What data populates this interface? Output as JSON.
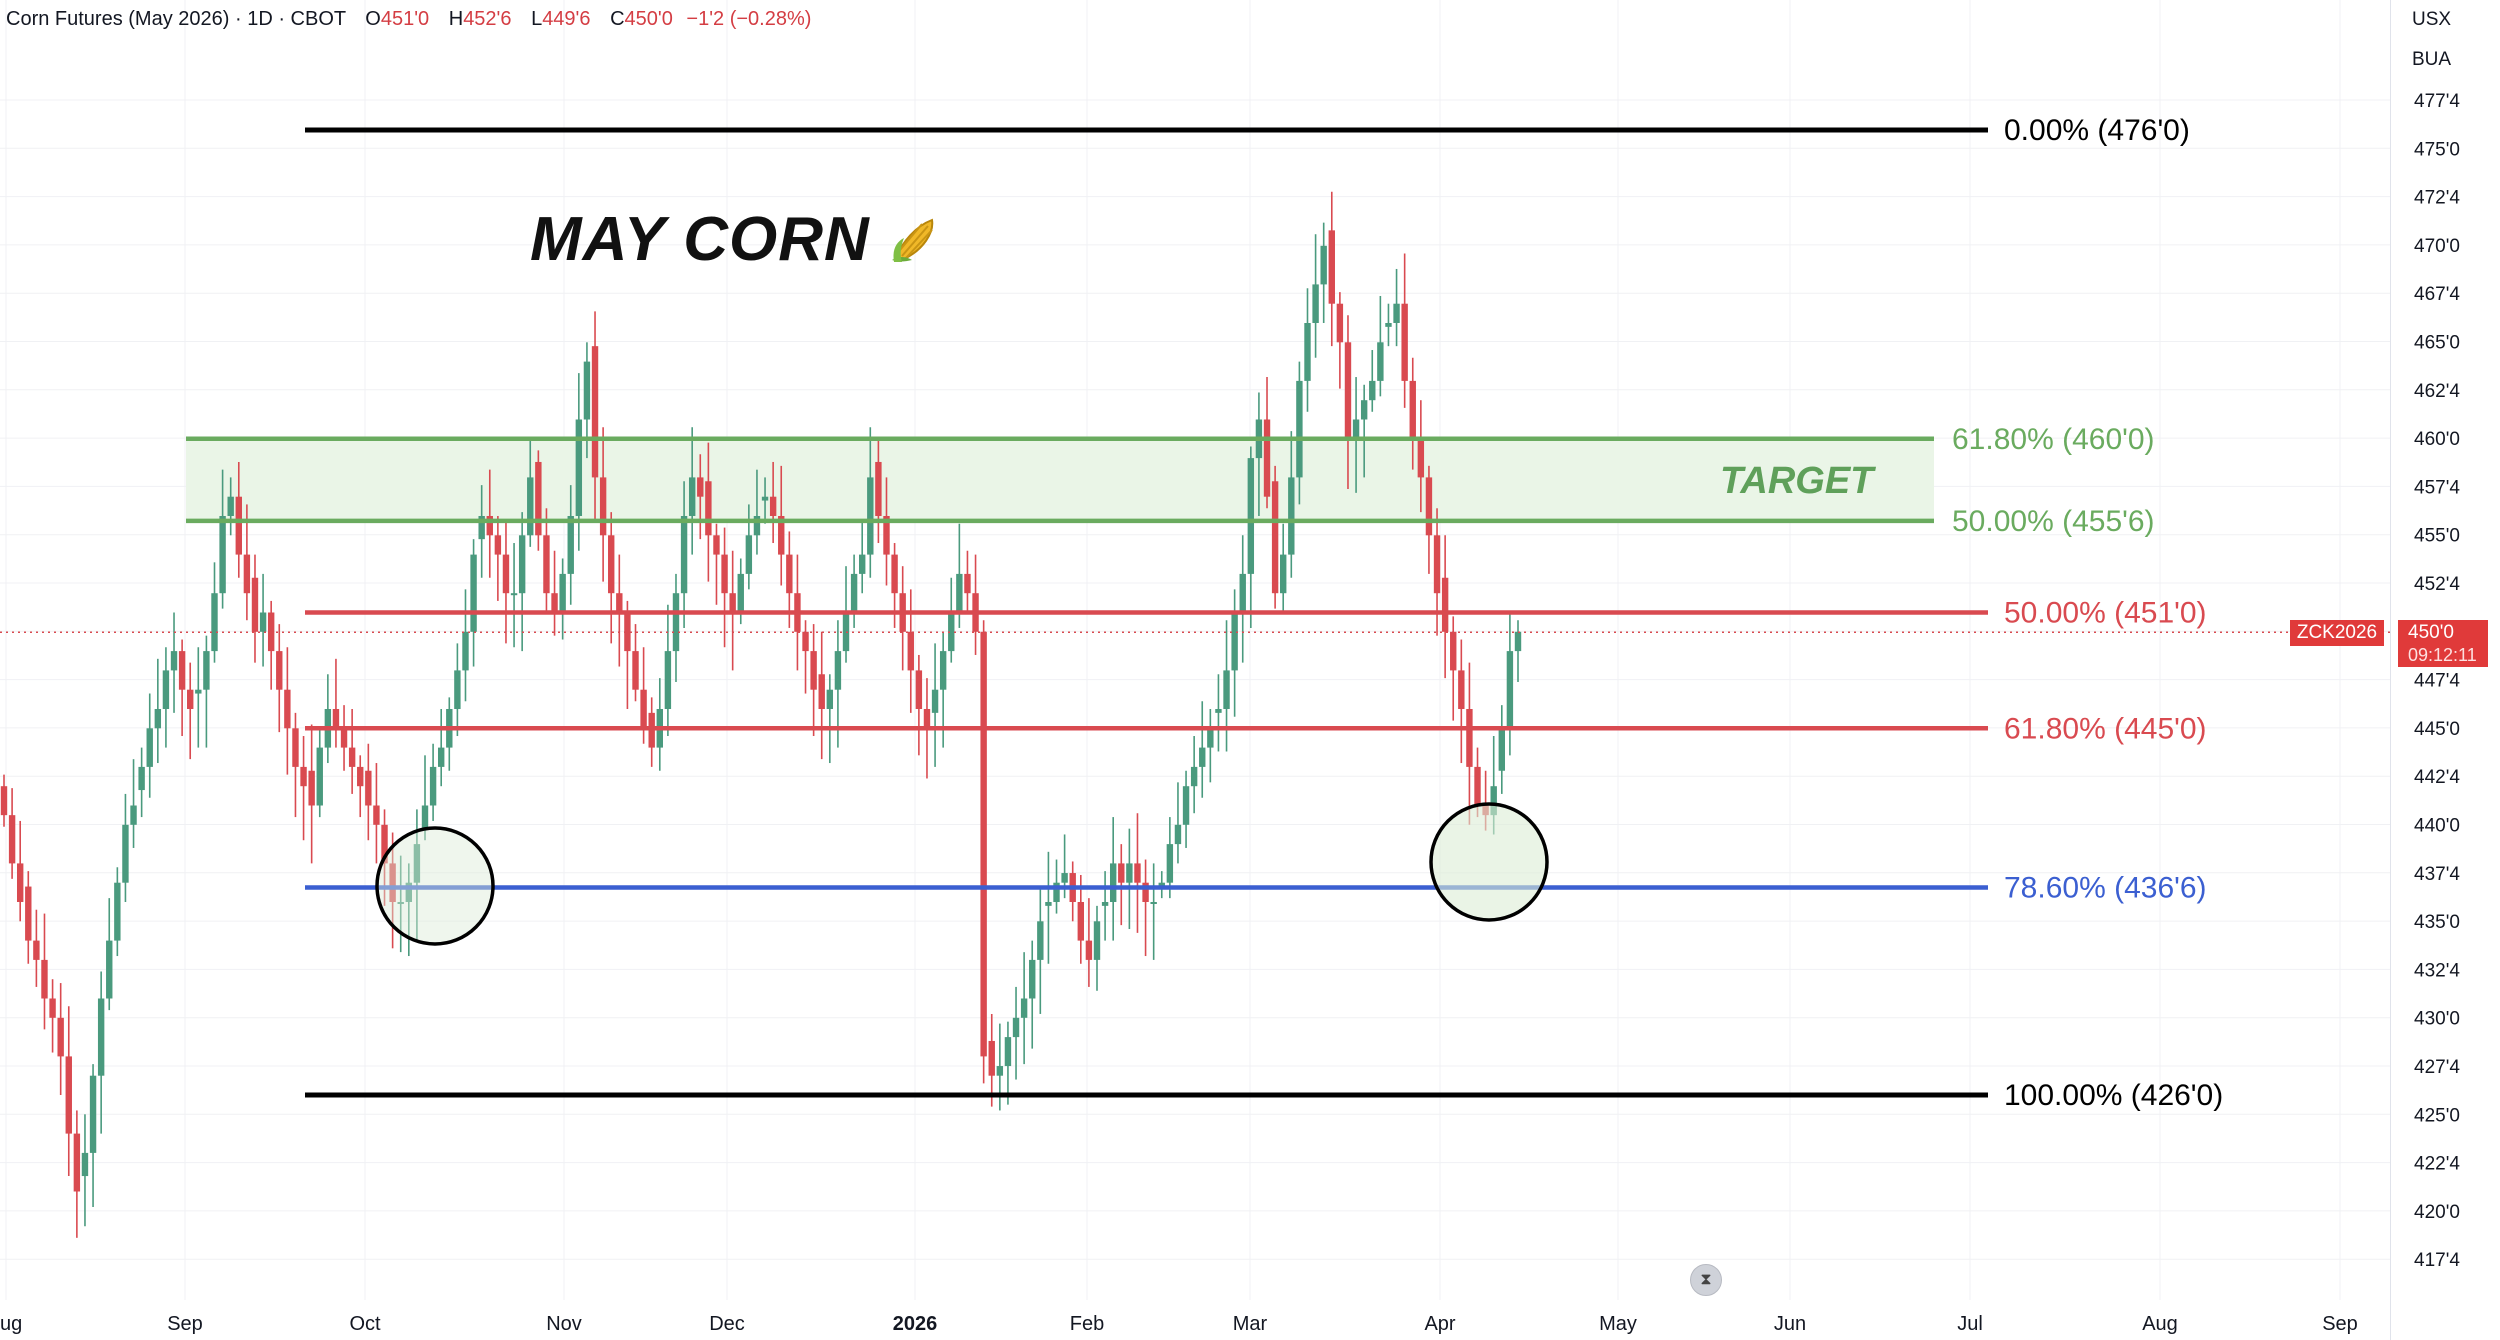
{
  "header": {
    "symbol": "Corn Futures (May 2026) · 1D · CBOT",
    "open_label": "O",
    "open_value": "451'0",
    "high_label": "H",
    "high_value": "452'6",
    "low_label": "L",
    "low_value": "449'6",
    "close_label": "C",
    "close_value": "450'0",
    "change": "−1'2 (−0.28%)"
  },
  "price_scale": {
    "units": [
      "USX",
      "BUA"
    ],
    "ticks": [
      "477'4",
      "475'0",
      "472'4",
      "470'0",
      "467'4",
      "465'0",
      "462'4",
      "460'0",
      "457'4",
      "455'0",
      "452'4",
      "450'0",
      "447'4",
      "445'0",
      "442'4",
      "440'0",
      "437'4",
      "435'0",
      "432'4",
      "430'0",
      "427'4",
      "425'0",
      "422'4",
      "420'0",
      "417'4"
    ],
    "current_price": "450'0",
    "current_timer": "09:12:11",
    "symbol_tag": "ZCK2026"
  },
  "time_axis": [
    "ug",
    "Sep",
    "Oct",
    "Nov",
    "Dec",
    "2026",
    "Feb",
    "Mar",
    "Apr",
    "May",
    "Jun",
    "Jul",
    "Aug",
    "Sep"
  ],
  "annotations": {
    "title": "MAY CORN",
    "target_label": "TARGET",
    "goto_icon": "hourglass-icon"
  },
  "colors": {
    "up": "#4a9a7e",
    "down": "#d94a50",
    "fib_black": "#000000",
    "fib_red": "#d94a50",
    "fib_green": "#6aab5f",
    "fib_blue": "#3b5fd1",
    "target_zone": "#eaf5e7"
  },
  "chart_data": {
    "type": "candlestick",
    "title": "Corn Futures (May 2026) · 1D · CBOT",
    "y_unit": "USX",
    "ylim": [
      416,
      478.5
    ],
    "x_range": [
      "2025-08",
      "2026-09"
    ],
    "fib_levels": [
      {
        "label": "0.00% (476'0)",
        "value": 476.0,
        "color": "black"
      },
      {
        "label": "100.00% (426'0)",
        "value": 426.0,
        "color": "black"
      },
      {
        "label": "50.00% (451'0)",
        "value": 451.0,
        "color": "red"
      },
      {
        "label": "61.80% (445'0)",
        "value": 445.0,
        "color": "red"
      },
      {
        "label": "78.60% (436'6)",
        "value": 436.75,
        "color": "blue"
      },
      {
        "label": "61.80% (460'0)",
        "value": 460.0,
        "color": "green"
      },
      {
        "label": "50.00% (455'6)",
        "value": 455.75,
        "color": "green"
      }
    ],
    "target_zone": [
      455.75,
      460.0
    ],
    "candles_close": [
      440.5,
      438,
      436,
      434,
      433,
      431,
      430,
      428,
      424,
      421,
      423,
      427,
      431,
      434,
      437,
      440,
      441,
      443,
      445,
      446,
      448,
      449,
      447,
      446,
      447,
      449,
      452,
      456,
      457,
      454,
      452,
      450,
      451,
      449,
      447,
      445,
      443,
      442,
      441,
      444,
      446,
      445,
      444,
      443,
      442,
      441,
      440,
      438,
      436,
      436,
      437,
      439,
      441,
      443,
      444,
      446,
      448,
      450,
      454,
      456,
      455,
      454,
      452,
      452,
      455,
      458,
      455,
      452,
      451,
      453,
      456,
      461,
      464,
      458,
      455,
      452,
      451,
      449,
      447,
      445,
      444,
      446,
      449,
      452,
      456,
      458,
      457,
      455,
      454,
      452,
      451,
      453,
      455,
      456,
      457,
      456,
      454,
      452,
      450,
      449,
      447,
      446,
      447,
      449,
      451,
      453,
      454,
      458,
      456,
      454,
      452,
      450,
      448,
      446,
      445,
      447,
      449,
      451,
      453,
      452,
      450,
      428,
      427,
      427.5,
      429,
      430,
      431,
      433,
      435,
      436,
      437,
      437.5,
      436,
      434,
      433,
      435,
      436,
      438,
      437,
      438,
      437,
      436,
      436,
      437,
      439,
      440,
      442,
      443,
      444,
      445,
      446,
      448,
      451,
      453,
      459,
      461,
      457,
      452,
      454,
      458,
      463,
      466,
      468,
      470,
      467,
      465,
      460,
      461,
      462,
      463,
      465,
      466,
      467,
      463,
      460,
      458,
      455,
      452,
      450,
      448,
      446,
      443,
      441,
      440.5,
      442,
      445,
      449,
      450
    ],
    "last_candle": {
      "open": "451'0",
      "high": "452'6",
      "low": "449'6",
      "close": "450'0"
    }
  }
}
